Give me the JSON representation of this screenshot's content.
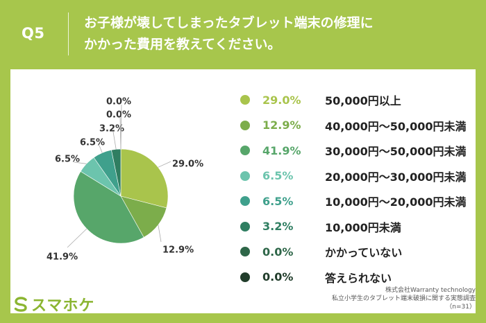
{
  "header": {
    "qnum": "Q5",
    "question_line1": "お子様が壊してしまったタブレット端末の修理に",
    "question_line2": "かかった費用を教えてください。"
  },
  "chart_data": {
    "type": "pie",
    "title": "お子様が壊してしまったタブレット端末の修理にかかった費用を教えてください。",
    "categories": [
      "50,000円以上",
      "40,000円〜50,000円未満",
      "30,000円〜50,000円未満",
      "20,000円〜30,000円未満",
      "10,000円〜20,000円未満",
      "10,000円未満",
      "かかっていない",
      "答えられない"
    ],
    "values": [
      29.0,
      12.9,
      41.9,
      6.5,
      6.5,
      3.2,
      0.0,
      0.0
    ],
    "value_labels": [
      "29.0%",
      "12.9%",
      "41.9%",
      "6.5%",
      "6.5%",
      "3.2%",
      "0.0%",
      "0.0%"
    ],
    "colors": [
      "#a9c44c",
      "#7cad4b",
      "#57a66a",
      "#6cc4ad",
      "#3fa08c",
      "#2f7e61",
      "#2e6648",
      "#213d2b"
    ],
    "legend_position": "right"
  },
  "footer": {
    "credit_line1": "株式会社Warranty technology",
    "credit_line2": "私立小学生のタブレット端末破損に関する実態調査",
    "credit_line3": "（n=31）",
    "logo_text": "スマホケ",
    "logo_icon": "s-logo-icon"
  }
}
